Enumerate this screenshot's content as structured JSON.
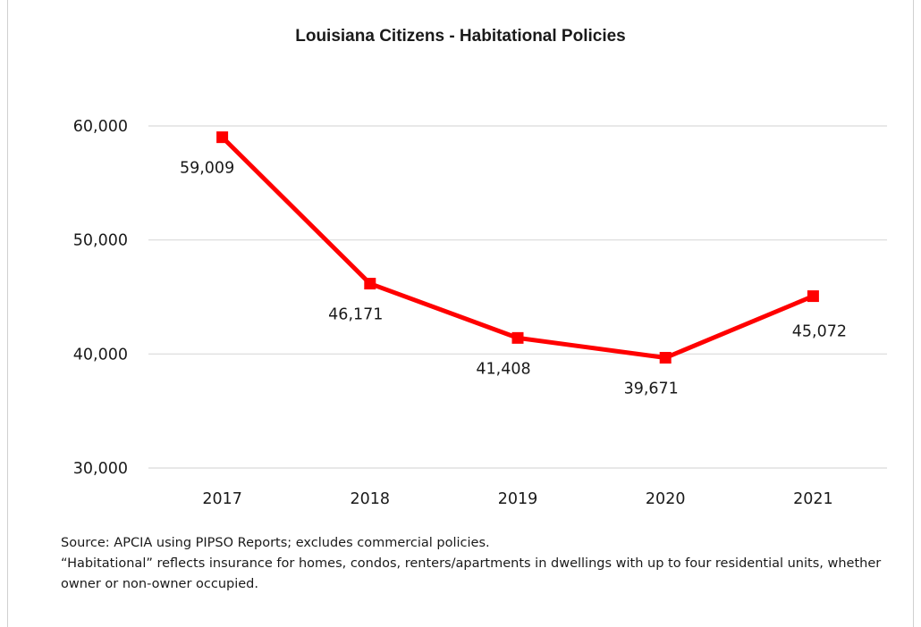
{
  "chart_data": {
    "type": "line",
    "title": "Louisiana Citizens - Habitational Policies",
    "categories": [
      "2017",
      "2018",
      "2019",
      "2020",
      "2021"
    ],
    "series": [
      {
        "values": [
          59009,
          46171,
          41408,
          39671,
          45072
        ],
        "data_labels": [
          "59,009",
          "46,171",
          "41,408",
          "39,671",
          "45,072"
        ],
        "color": "#ff0000",
        "marker": "square"
      }
    ],
    "y_ticks": [
      30000,
      40000,
      50000,
      60000
    ],
    "y_tick_labels": [
      "30,000",
      "40,000",
      "50,000",
      "60,000"
    ],
    "ylim": [
      30000,
      60000
    ],
    "xlabel": "",
    "ylabel": "",
    "grid": true,
    "grid_color": "#d9d9d9",
    "legend": false
  },
  "notes": {
    "source": "Source: APCIA using PIPSO Reports; excludes commercial policies.",
    "definition": "“Habitational” reflects insurance for homes, condos, renters/apartments in dwellings with up to four residential units, whether owner or non-owner occupied."
  }
}
